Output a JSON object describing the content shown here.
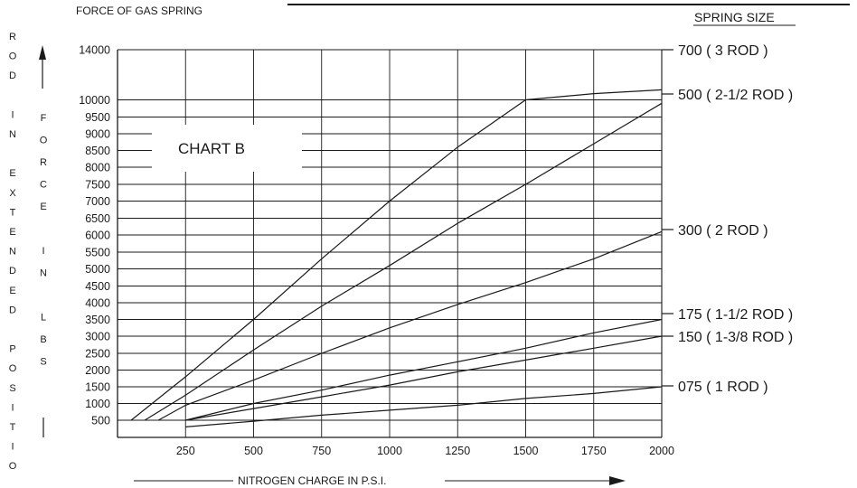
{
  "header": {
    "title": "FORCE OF GAS SPRING",
    "spring_size_heading": "SPRING SIZE"
  },
  "left_caption": {
    "rod_in_extended_position": [
      "R",
      "O",
      "D",
      "",
      "I",
      "N",
      "",
      "E",
      "X",
      "T",
      "E",
      "N",
      "D",
      "E",
      "D",
      "",
      "P",
      "O",
      "S",
      "I",
      "T",
      "I",
      "O"
    ],
    "force_in_lbs": [
      "F",
      "O",
      "R",
      "C",
      "E",
      "",
      "I",
      "N",
      "",
      "L",
      "B",
      "S"
    ]
  },
  "chart_data": {
    "type": "line",
    "title": "CHART B",
    "xlabel": "NITROGEN CHARGE IN P.S.I.",
    "ylabel": "",
    "x_ticks": [
      250,
      500,
      750,
      1000,
      1250,
      1500,
      1750,
      2000
    ],
    "y_ticks": [
      500,
      1000,
      1500,
      2000,
      2500,
      3000,
      3500,
      4000,
      4500,
      5000,
      5500,
      6000,
      6500,
      7000,
      7500,
      8000,
      8500,
      9000,
      9500,
      10000,
      14000
    ],
    "xlim": [
      0,
      2000
    ],
    "grid": true,
    "series": [
      {
        "name": "700",
        "label": "700  ( 3 ROD )",
        "x": [
          50,
          250,
          500,
          750,
          1000,
          1250,
          1500,
          1750,
          2000
        ],
        "y": [
          500,
          1800,
          3500,
          5300,
          7000,
          8600,
          10000,
          10500,
          10800
        ]
      },
      {
        "name": "500",
        "label": "500  ( 2-1/2 ROD )",
        "x": [
          100,
          250,
          500,
          750,
          1000,
          1250,
          1500,
          1750,
          2000
        ],
        "y": [
          500,
          1250,
          2600,
          3900,
          5100,
          6350,
          7500,
          8700,
          9900
        ]
      },
      {
        "name": "300",
        "label": "300  ( 2 ROD )",
        "x": [
          150,
          250,
          500,
          750,
          1000,
          1250,
          1500,
          1750,
          2000
        ],
        "y": [
          500,
          950,
          1700,
          2500,
          3250,
          3950,
          4600,
          5300,
          6100
        ]
      },
      {
        "name": "175",
        "label": "175  ( 1-1/2 ROD )",
        "x": [
          250,
          500,
          750,
          1000,
          1250,
          1500,
          1750,
          2000
        ],
        "y": [
          500,
          1000,
          1400,
          1850,
          2250,
          2650,
          3100,
          3500
        ]
      },
      {
        "name": "150",
        "label": "150  ( 1-3/8 ROD )",
        "x": [
          250,
          500,
          750,
          1000,
          1250,
          1500,
          1750,
          2000
        ],
        "y": [
          500,
          850,
          1200,
          1550,
          1950,
          2300,
          2650,
          3000
        ]
      },
      {
        "name": "075",
        "label": "075  ( 1 ROD )",
        "x": [
          250,
          500,
          750,
          1000,
          1250,
          1500,
          1750,
          2000
        ],
        "y": [
          300,
          470,
          650,
          800,
          950,
          1150,
          1300,
          1500
        ]
      }
    ]
  }
}
